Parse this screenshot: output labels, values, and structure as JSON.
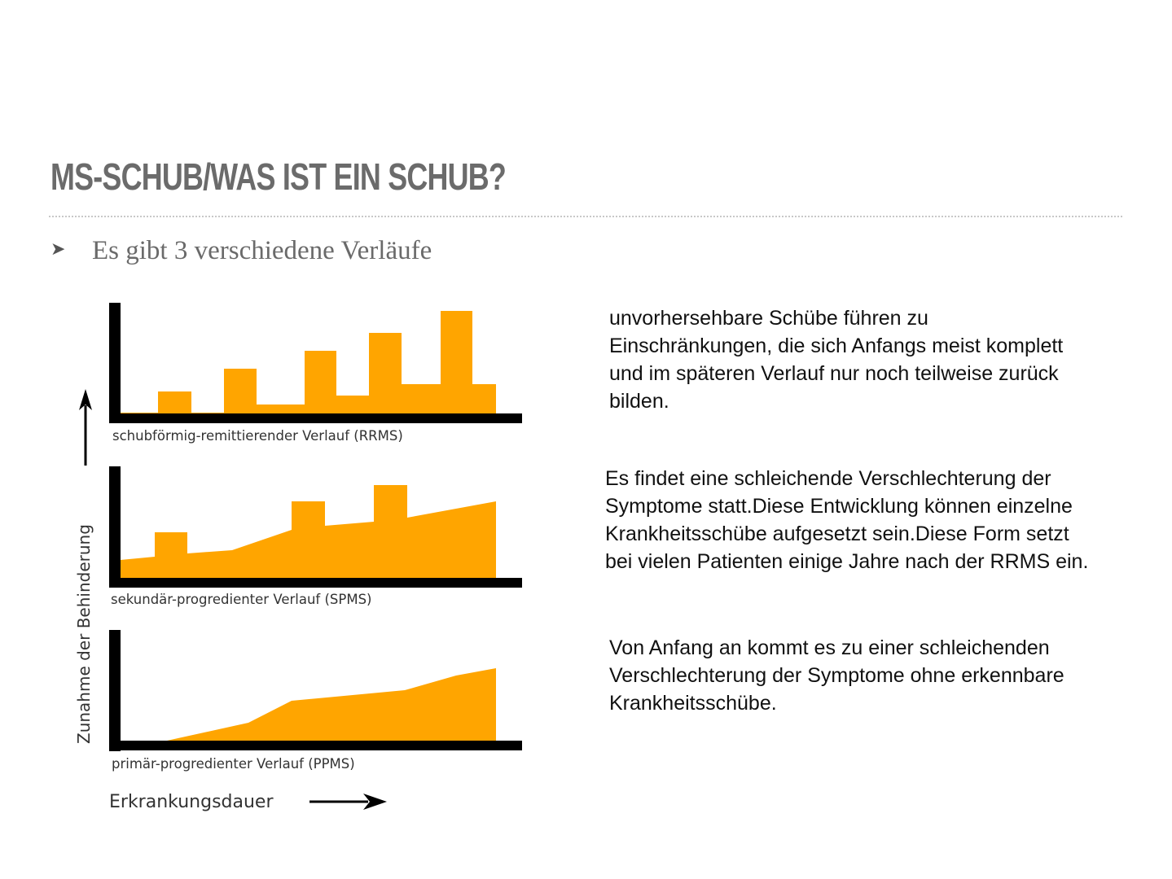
{
  "slide": {
    "title": "MS-SCHUB/WAS IST EIN SCHUB?",
    "bullet_icon": "arrowhead-bullet",
    "bullet_text": "Es gibt 3 verschiedene Verläufe"
  },
  "diagram": {
    "y_axis_label": "Zunahme der Behinderung",
    "x_axis_label": "Erkrankungsdauer",
    "fill_color": "#ffa500",
    "axis_color": "#000000",
    "panels": [
      {
        "label": "schubförmig-remittierender Verlauf (RRMS)"
      },
      {
        "label": "sekundär-progredienter Verlauf (SPMS)"
      },
      {
        "label": "primär-progredienter Verlauf (PPMS)"
      }
    ]
  },
  "descriptions": [
    {
      "lines": [
        "unvorhersehbare Schübe führen zu",
        "Einschränkungen, die sich Anfangs meist komplett",
        "und im späteren Verlauf nur noch teilweise zurück",
        "bilden."
      ]
    },
    {
      "lines": [
        "Es findet eine schleichende Verschlechterung der",
        "Symptome statt.Diese Entwicklung können einzelne",
        "Krankheitsschübe aufgesetzt sein.Diese Form setzt",
        "bei vielen Patienten einige Jahre nach der RRMS ein."
      ]
    },
    {
      "lines": [
        "Von Anfang an kommt es zu einer schleichenden",
        "Verschlechterung der Symptome ohne erkennbare",
        "Krankheitsschübe."
      ]
    }
  ]
}
